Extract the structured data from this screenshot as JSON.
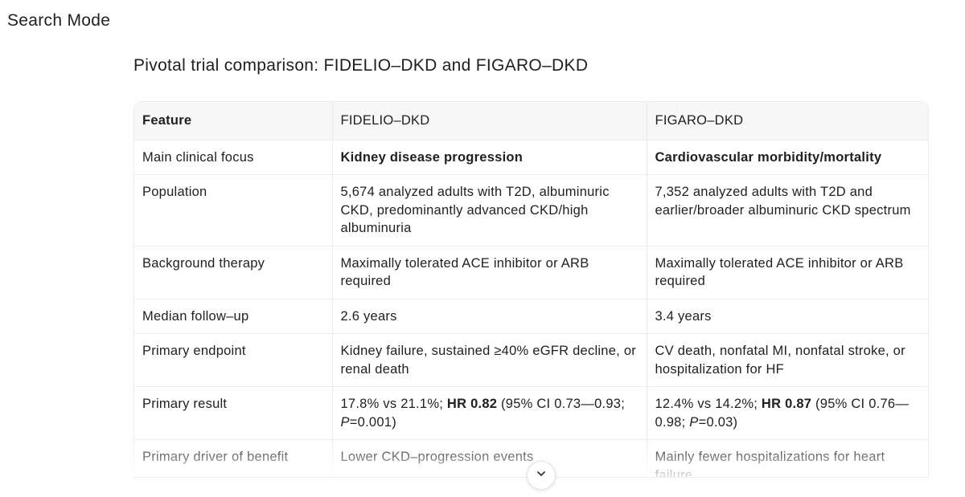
{
  "mode_label": "Search Mode",
  "heading": "Pivotal trial comparison: FIDELIO–DKD and FIGARO–DKD",
  "table": {
    "headers": [
      "Feature",
      "FIDELIO–DKD",
      "FIGARO–DKD"
    ],
    "rows": [
      {
        "feature": "Main clinical focus",
        "fidelio": "Kidney disease progression",
        "figaro": "Cardiovascular morbidity/mortality"
      },
      {
        "feature": "Population",
        "fidelio": "5,674 analyzed adults with T2D, albuminuric CKD, predominantly advanced CKD/high albuminuria",
        "figaro": "7,352 analyzed adults with T2D and earlier/broader albuminuric CKD spectrum"
      },
      {
        "feature": "Background therapy",
        "fidelio": "Maximally tolerated ACE inhibitor or ARB required",
        "figaro": "Maximally tolerated ACE inhibitor or ARB required"
      },
      {
        "feature": "Median follow–up",
        "fidelio": "2.6 years",
        "figaro": "3.4 years"
      },
      {
        "feature": "Primary endpoint",
        "fidelio": "Kidney failure, sustained ≥40% eGFR decline, or renal death",
        "figaro": "CV death, nonfatal MI, nonfatal stroke, or hospitalization for HF"
      },
      {
        "feature": "Primary result",
        "fidelio": {
          "pre": "17.8% vs 21.1%; ",
          "hr": "HR 0.82",
          "mid": " (95% CI 0.73—0.93; ",
          "p": "P",
          "post": "=0.001)"
        },
        "figaro": {
          "pre": "12.4% vs 14.2%; ",
          "hr": "HR 0.87",
          "mid": " (95% CI 0.76—0.98; ",
          "p": "P",
          "post": "=0.03)"
        }
      },
      {
        "feature": "Primary driver of benefit",
        "fidelio": "Lower CKD–progression events",
        "figaro": "Mainly fewer hospitalizations for heart failure"
      }
    ]
  },
  "icons": {
    "scroll_down": "chevron-down-icon"
  }
}
